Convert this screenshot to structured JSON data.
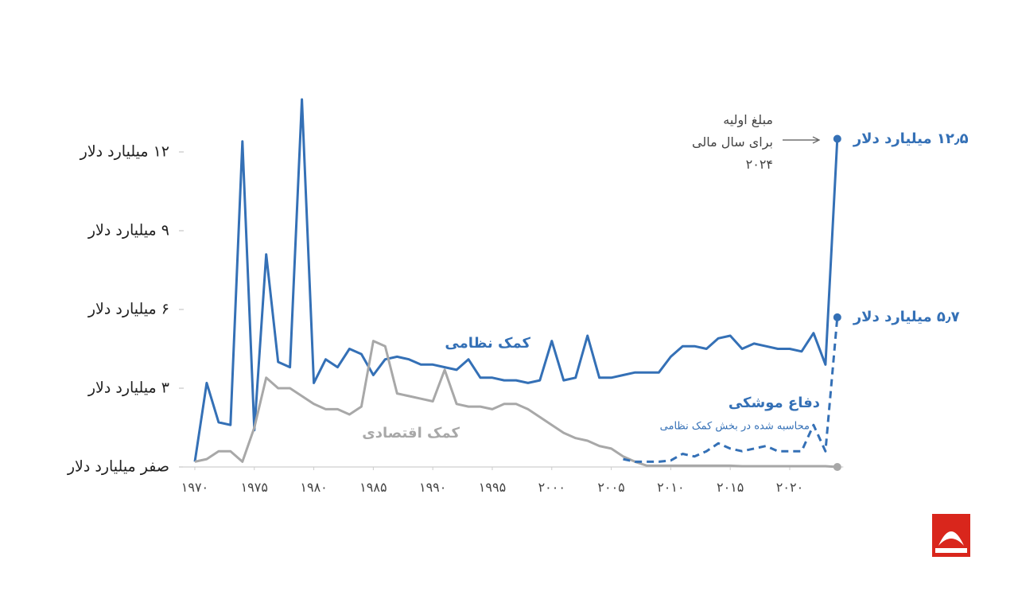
{
  "chart_data": {
    "type": "line",
    "x": [
      1970,
      1971,
      1972,
      1973,
      1974,
      1975,
      1976,
      1977,
      1978,
      1979,
      1980,
      1981,
      1982,
      1983,
      1984,
      1985,
      1986,
      1987,
      1988,
      1989,
      1990,
      1991,
      1992,
      1993,
      1994,
      1995,
      1996,
      1997,
      1998,
      1999,
      2000,
      2001,
      2002,
      2003,
      2004,
      2005,
      2006,
      2007,
      2008,
      2009,
      2010,
      2011,
      2012,
      2013,
      2014,
      2015,
      2016,
      2017,
      2018,
      2019,
      2020,
      2021,
      2022,
      2023,
      2024
    ],
    "xlim": [
      1969,
      2024.5
    ],
    "xticks": [
      {
        "value": 1970,
        "label": "۱۹۷۰"
      },
      {
        "value": 1975,
        "label": "۱۹۷۵"
      },
      {
        "value": 1980,
        "label": "۱۹۸۰"
      },
      {
        "value": 1985,
        "label": "۱۹۸۵"
      },
      {
        "value": 1990,
        "label": "۱۹۹۰"
      },
      {
        "value": 1995,
        "label": "۱۹۹۵"
      },
      {
        "value": 2000,
        "label": "۲۰۰۰"
      },
      {
        "value": 2005,
        "label": "۲۰۰۵"
      },
      {
        "value": 2010,
        "label": "۲۰۱۰"
      },
      {
        "value": 2015,
        "label": "۲۰۱۵"
      },
      {
        "value": 2020,
        "label": "۲۰۲۰"
      }
    ],
    "ylim": [
      0,
      14.5
    ],
    "yticks": [
      {
        "value": 0,
        "label": "صفر میلیارد دلار"
      },
      {
        "value": 3,
        "label": "۳ میلیارد دلار"
      },
      {
        "value": 6,
        "label": "۶ میلیارد دلار"
      },
      {
        "value": 9,
        "label": "۹ میلیارد دلار"
      },
      {
        "value": 12,
        "label": "۱۲ میلیارد دلار"
      }
    ],
    "series": [
      {
        "name": "کمک نظامی",
        "color": "#3470b6",
        "values": [
          0.2,
          3.2,
          1.7,
          1.6,
          12.4,
          1.4,
          8.1,
          4.0,
          3.8,
          14.0,
          3.2,
          4.1,
          3.8,
          4.5,
          4.3,
          3.5,
          4.1,
          4.2,
          4.1,
          3.9,
          3.9,
          3.8,
          3.7,
          4.1,
          3.4,
          3.4,
          3.3,
          3.3,
          3.2,
          3.3,
          4.8,
          3.3,
          3.4,
          5.0,
          3.4,
          3.4,
          3.5,
          3.6,
          3.6,
          3.6,
          4.2,
          4.6,
          4.6,
          4.5,
          4.9,
          5.0,
          4.5,
          4.7,
          4.6,
          4.5,
          4.5,
          4.4,
          5.1,
          3.9,
          12.5
        ],
        "value_labels": [
          null,
          null,
          null,
          null,
          null,
          null,
          null,
          null,
          null,
          null,
          null,
          null,
          null,
          null,
          null,
          null,
          null,
          null,
          null,
          null,
          null,
          null,
          null,
          null,
          null,
          null,
          null,
          null,
          null,
          null,
          null,
          null,
          null,
          null,
          null,
          null,
          null,
          null,
          null,
          null,
          null,
          null,
          null,
          null,
          null,
          null,
          null,
          null,
          null,
          null,
          null,
          null,
          null,
          null,
          "۱۲٫۵ میلیارد دلار"
        ]
      },
      {
        "name": "کمک اقتصادی",
        "color": "#a8a8a8",
        "values": [
          0.2,
          0.3,
          0.6,
          0.6,
          0.2,
          1.5,
          3.4,
          3.0,
          3.0,
          2.7,
          2.4,
          2.2,
          2.2,
          2.0,
          2.3,
          4.8,
          4.6,
          2.8,
          2.7,
          2.6,
          2.5,
          3.7,
          2.4,
          2.3,
          2.3,
          2.2,
          2.4,
          2.4,
          2.2,
          1.9,
          1.6,
          1.3,
          1.1,
          1.0,
          0.8,
          0.7,
          0.4,
          0.2,
          0.05,
          0.05,
          0.05,
          0.05,
          0.05,
          0.05,
          0.05,
          0.05,
          0.03,
          0.03,
          0.03,
          0.03,
          0.03,
          0.03,
          0.03,
          0.03,
          0
        ]
      },
      {
        "name": "دفاع موشکی",
        "color": "#3470b6",
        "dashed": true,
        "note": "محاسبه شده در بخش کمک نظامی",
        "values": [
          null,
          null,
          null,
          null,
          null,
          null,
          null,
          null,
          null,
          null,
          null,
          null,
          null,
          null,
          null,
          null,
          null,
          null,
          null,
          null,
          null,
          null,
          null,
          null,
          null,
          null,
          null,
          null,
          null,
          null,
          null,
          null,
          null,
          null,
          null,
          null,
          0.3,
          0.2,
          0.2,
          0.2,
          0.25,
          0.5,
          0.4,
          0.6,
          0.9,
          0.7,
          0.6,
          0.7,
          0.8,
          0.6,
          0.6,
          0.6,
          1.6,
          0.6,
          5.7
        ],
        "value_labels": [
          null,
          null,
          null,
          null,
          null,
          null,
          null,
          null,
          null,
          null,
          null,
          null,
          null,
          null,
          null,
          null,
          null,
          null,
          null,
          null,
          null,
          null,
          null,
          null,
          null,
          null,
          null,
          null,
          null,
          null,
          null,
          null,
          null,
          null,
          null,
          null,
          null,
          null,
          null,
          null,
          null,
          null,
          null,
          null,
          null,
          null,
          null,
          null,
          null,
          null,
          null,
          null,
          null,
          null,
          "۵٫۷ میلیارد دلار"
        ]
      }
    ],
    "annotation": {
      "lines": [
        "مبلغ اولیه",
        "برای سال مالی",
        "۲۰۲۴"
      ]
    }
  }
}
